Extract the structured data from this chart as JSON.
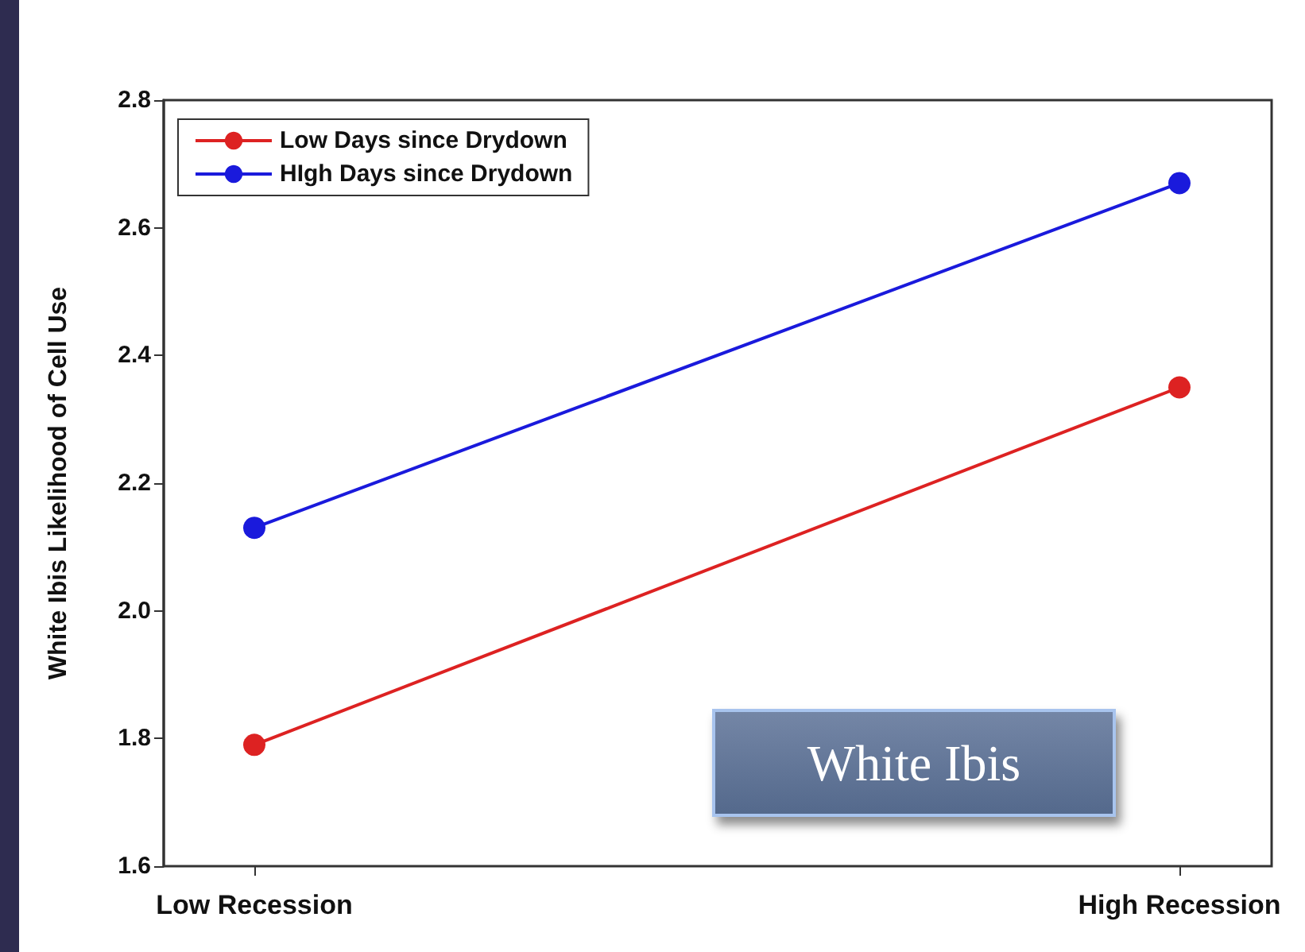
{
  "chart_data": {
    "type": "line",
    "ylabel": "White Ibis Likelihood of Cell Use",
    "categories": [
      "Low Recession",
      "High Recession"
    ],
    "series": [
      {
        "name": "Low Days since Drydown",
        "color": "#dd2222",
        "values": [
          1.79,
          2.35
        ]
      },
      {
        "name": "HIgh Days since Drydown",
        "color": "#1a1adc",
        "values": [
          2.13,
          2.67
        ]
      }
    ],
    "ylim": [
      1.6,
      2.8
    ],
    "yticks": [
      1.6,
      1.8,
      {
        "value": 2,
        "label": "2.0"
      },
      2.2,
      2.4,
      2.6,
      2.8
    ],
    "annotations": [
      "White Ibis"
    ],
    "grid": false,
    "legend": "top left",
    "marker": "circle",
    "line_style": "solid"
  }
}
